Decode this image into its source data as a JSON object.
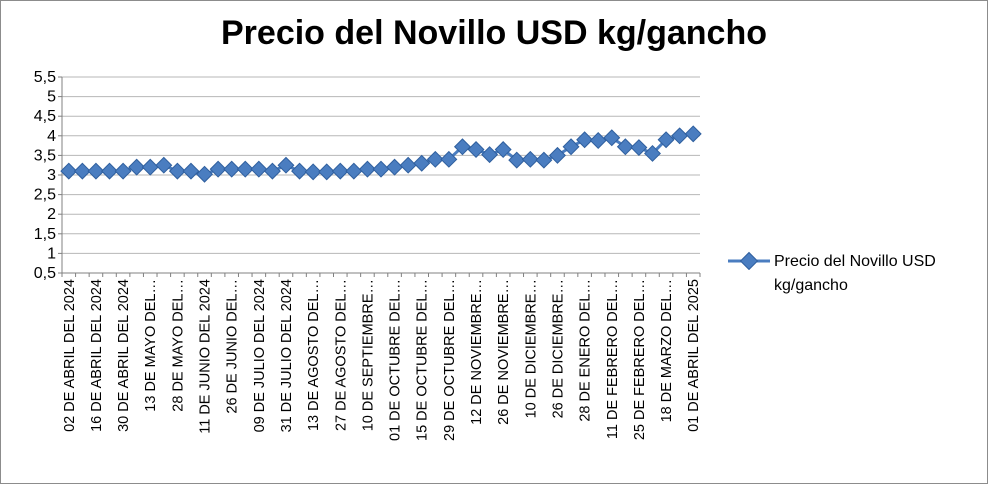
{
  "chart_data": {
    "type": "line",
    "title": "Precio del Novillo USD kg/gancho",
    "xlabel": "",
    "ylabel": "",
    "ylim": [
      0.5,
      5.5
    ],
    "yticks": [
      "0,5",
      "1",
      "1,5",
      "2",
      "2,5",
      "3",
      "3,5",
      "4",
      "4,5",
      "5",
      "5,5"
    ],
    "grid": true,
    "legend_position": "right",
    "colors": {
      "series": "#4a7dc0",
      "grid": "#b7b7b7",
      "axis": "#808080"
    },
    "categories": [
      "02 DE ABRIL  DEL 2024",
      "",
      "16 DE ABRIL  DEL 2024",
      "",
      "30 DE ABRIL  DEL 2024",
      "",
      "13 DE MAYO  DEL…",
      "",
      "28 DE MAYO  DEL…",
      "",
      "11 DE JUNIO DEL 2024",
      "",
      "26 DE JUNIO  DEL…",
      "",
      "09 DE JULIO  DEL 2024",
      "",
      "31 DE JULIO DEL 2024",
      "",
      "13 DE AGOSTO  DEL…",
      "",
      "27 DE AGOSTO  DEL…",
      "",
      "10 DE SEPTIEMBRE…",
      "",
      "01 DE OCTUBRE  DEL…",
      "",
      "15 DE OCTUBRE DEL…",
      "",
      "29 DE OCTUBRE  DEL…",
      "",
      "12 DE NOVIEMBRE…",
      "",
      "26 DE NOVIEMBRE…",
      "",
      "10 DE DICIEMBRE…",
      "",
      "26  DE DICIEMBRE…",
      "",
      "28 DE ENERO DEL…",
      "",
      "11 DE FEBRERO DEL…",
      "",
      "25 DE FEBRERO DEL…",
      "",
      "18 DE MARZO DEL…",
      "",
      "01 DE ABRIL DEL 2025"
    ],
    "series": [
      {
        "name": "Precio del Novillo USD kg/gancho",
        "values": [
          3.1,
          3.1,
          3.1,
          3.1,
          3.1,
          3.2,
          3.2,
          3.25,
          3.1,
          3.1,
          3.02,
          3.15,
          3.15,
          3.15,
          3.15,
          3.1,
          3.25,
          3.1,
          3.08,
          3.08,
          3.1,
          3.1,
          3.15,
          3.15,
          3.2,
          3.25,
          3.3,
          3.4,
          3.4,
          3.72,
          3.65,
          3.52,
          3.65,
          3.38,
          3.4,
          3.38,
          3.5,
          3.72,
          3.9,
          3.88,
          3.95,
          3.72,
          3.7,
          3.55,
          3.9,
          4.0,
          4.05
        ]
      }
    ]
  }
}
